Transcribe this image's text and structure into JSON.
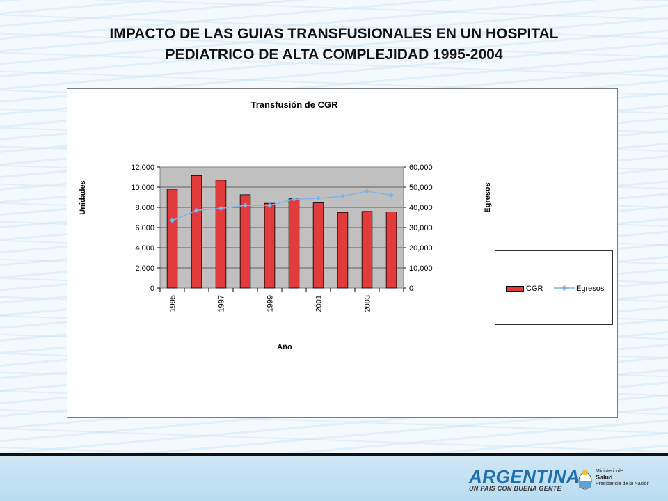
{
  "slide": {
    "title_line1": "IMPACTO DE LAS GUIAS TRANSFUSIONALES EN UN HOSPITAL",
    "title_line2": "PEDIATRICO DE ALTA COMPLEJIDAD 1995-2004"
  },
  "chart_data": {
    "type": "bar",
    "title": "Transfusión de CGR",
    "xlabel": "Año",
    "ylabel": "Unidades",
    "y2label": "Egresos",
    "categories": [
      "1995",
      "1996",
      "1997",
      "1998",
      "1999",
      "2000",
      "2001",
      "2002",
      "2003",
      "2004"
    ],
    "x_tick_labels": [
      "1995",
      "",
      "1997",
      "",
      "1999",
      "",
      "2001",
      "",
      "2003",
      ""
    ],
    "ylim": [
      0,
      12000
    ],
    "y2lim": [
      0,
      60000
    ],
    "y_ticks": [
      "0",
      "2,000",
      "4,000",
      "6,000",
      "8,000",
      "10,000",
      "12,000"
    ],
    "y2_ticks": [
      "0",
      "10,000",
      "20,000",
      "30,000",
      "40,000",
      "50,000",
      "60,000"
    ],
    "series": [
      {
        "name": "CGR",
        "type": "bar",
        "axis": "left",
        "color": "#e23b3b",
        "values": [
          9800,
          11150,
          10700,
          9250,
          8400,
          8850,
          8450,
          7500,
          7600,
          7550
        ]
      },
      {
        "name": "Egresos",
        "type": "line",
        "axis": "right",
        "color": "#7fb4ea",
        "values": [
          33500,
          38500,
          39500,
          41000,
          41000,
          44000,
          44500,
          45500,
          48000,
          46000
        ]
      }
    ],
    "plot_background": "#c0c0c0",
    "legend_position": "right"
  },
  "footer": {
    "brand_name": "ARGENTINA",
    "brand_tagline": "UN PAIS CON BUENA GENTE",
    "ministry_line1": "Ministerio de",
    "ministry_line2": "Salud",
    "ministry_line3": "Presidencia de la Nación"
  }
}
